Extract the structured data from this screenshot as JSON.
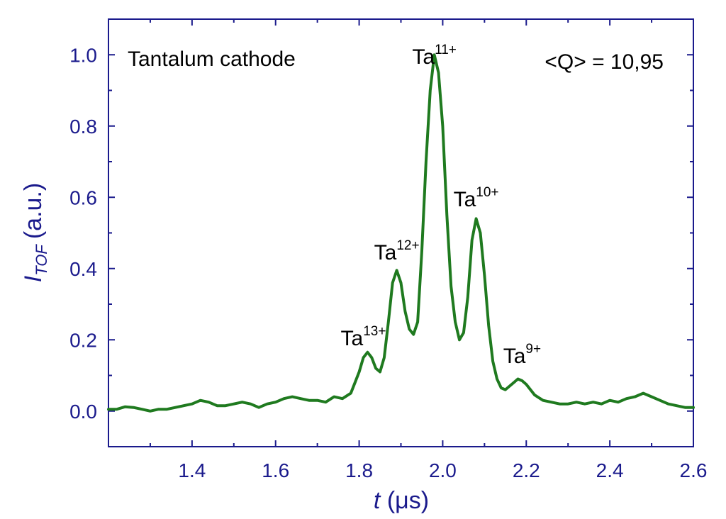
{
  "chart_data": {
    "type": "line",
    "title": "",
    "xlabel": {
      "symbol": "t",
      "unit": "(μs)"
    },
    "ylabel": {
      "symbol": "I",
      "subscript": "TOF",
      "unit": "(a.u.)"
    },
    "xlim": [
      1.2,
      2.6
    ],
    "ylim": [
      -0.1,
      1.1
    ],
    "x_ticks": [
      1.4,
      1.6,
      1.8,
      2.0,
      2.2,
      2.4,
      2.6
    ],
    "x_tick_labels": [
      "1.4",
      "1.6",
      "1.8",
      "2.0",
      "2.2",
      "2.4",
      "2.6"
    ],
    "y_ticks": [
      0.0,
      0.2,
      0.4,
      0.6,
      0.8,
      1.0
    ],
    "y_tick_labels": [
      "0.0",
      "0.2",
      "0.4",
      "0.6",
      "0.8",
      "1.0"
    ],
    "grid": false,
    "colors": {
      "axis": "#1a1a8c",
      "line": "#1f7a1f",
      "text": "#000000"
    },
    "series": [
      {
        "name": "Tantalum cathode TOF signal",
        "x": [
          1.2,
          1.22,
          1.24,
          1.26,
          1.28,
          1.3,
          1.32,
          1.34,
          1.36,
          1.38,
          1.4,
          1.42,
          1.44,
          1.46,
          1.48,
          1.5,
          1.52,
          1.54,
          1.56,
          1.58,
          1.6,
          1.62,
          1.64,
          1.66,
          1.68,
          1.7,
          1.72,
          1.74,
          1.76,
          1.78,
          1.79,
          1.8,
          1.81,
          1.82,
          1.83,
          1.84,
          1.85,
          1.86,
          1.87,
          1.88,
          1.89,
          1.9,
          1.91,
          1.92,
          1.93,
          1.94,
          1.95,
          1.96,
          1.97,
          1.98,
          1.99,
          2.0,
          2.01,
          2.02,
          2.03,
          2.04,
          2.05,
          2.06,
          2.07,
          2.08,
          2.09,
          2.1,
          2.11,
          2.12,
          2.13,
          2.14,
          2.15,
          2.16,
          2.17,
          2.18,
          2.19,
          2.2,
          2.21,
          2.22,
          2.24,
          2.26,
          2.28,
          2.3,
          2.32,
          2.34,
          2.36,
          2.38,
          2.4,
          2.42,
          2.44,
          2.46,
          2.48,
          2.5,
          2.52,
          2.54,
          2.56,
          2.58,
          2.6
        ],
        "y": [
          0.005,
          0.005,
          0.012,
          0.01,
          0.005,
          0.0,
          0.005,
          0.005,
          0.01,
          0.015,
          0.02,
          0.03,
          0.025,
          0.015,
          0.015,
          0.02,
          0.025,
          0.02,
          0.01,
          0.02,
          0.025,
          0.035,
          0.04,
          0.035,
          0.03,
          0.03,
          0.025,
          0.04,
          0.035,
          0.05,
          0.08,
          0.11,
          0.15,
          0.165,
          0.15,
          0.12,
          0.11,
          0.15,
          0.25,
          0.36,
          0.395,
          0.36,
          0.28,
          0.23,
          0.215,
          0.25,
          0.45,
          0.7,
          0.9,
          1.0,
          0.95,
          0.8,
          0.55,
          0.35,
          0.25,
          0.2,
          0.22,
          0.32,
          0.48,
          0.54,
          0.5,
          0.38,
          0.24,
          0.14,
          0.09,
          0.065,
          0.06,
          0.07,
          0.08,
          0.09,
          0.085,
          0.075,
          0.06,
          0.045,
          0.03,
          0.025,
          0.02,
          0.02,
          0.025,
          0.02,
          0.025,
          0.02,
          0.03,
          0.025,
          0.035,
          0.04,
          0.05,
          0.04,
          0.03,
          0.02,
          0.015,
          0.01,
          0.01
        ]
      }
    ],
    "annotations": [
      {
        "base": "Ta",
        "sup": "11+",
        "x": 1.98,
        "y": 0.975
      },
      {
        "base": "Ta",
        "sup": "10+",
        "x": 2.08,
        "y": 0.575
      },
      {
        "base": "Ta",
        "sup": "12+",
        "x": 1.89,
        "y": 0.425
      },
      {
        "base": "Ta",
        "sup": "13+",
        "x": 1.81,
        "y": 0.185
      },
      {
        "base": "Ta",
        "sup": "9+",
        "x": 2.19,
        "y": 0.135
      }
    ],
    "text_labels": {
      "sample": "Tantalum cathode",
      "mean_charge": "<Q> = 10,95"
    }
  }
}
